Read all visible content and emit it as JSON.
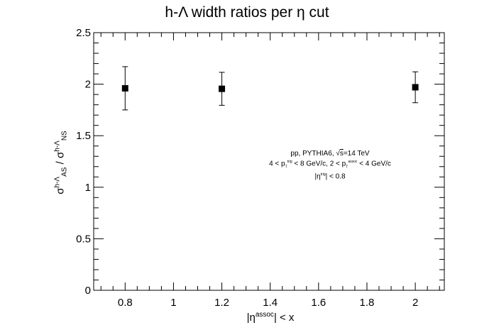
{
  "chart_data": {
    "type": "scatter",
    "title": "h-Λ width ratios per η cut",
    "xlabel": {
      "pre": "|η",
      "sup": "assoc",
      "post": "| < x"
    },
    "ylabel": {
      "s1": "σ",
      "s1sup": "h-Λ",
      "s1sub": "AS",
      "mid": " / ",
      "s2": "σ",
      "s2sup": "h-Λ",
      "s2sub": "NS"
    },
    "xlim": [
      0.67,
      2.12
    ],
    "ylim": [
      0,
      2.5
    ],
    "xticks": [
      0.8,
      1,
      1.2,
      1.4,
      1.6,
      1.8,
      2
    ],
    "xtick_labels": [
      "0.8",
      "1",
      "1.2",
      "1.4",
      "1.6",
      "1.8",
      "2"
    ],
    "yticks": [
      0,
      0.5,
      1,
      1.5,
      2,
      2.5
    ],
    "ytick_labels": [
      "0",
      "0.5",
      "1",
      "1.5",
      "2",
      "2.5"
    ],
    "grid": false,
    "series": [
      {
        "points": [
          {
            "x": 0.8,
            "y": 1.96,
            "err_low": 0.21,
            "err_high": 0.21
          },
          {
            "x": 1.2,
            "y": 1.955,
            "err_low": 0.16,
            "err_high": 0.16
          },
          {
            "x": 2.0,
            "y": 1.97,
            "err_low": 0.15,
            "err_high": 0.15
          }
        ],
        "color": "#000000"
      }
    ],
    "annotations": {
      "line1": {
        "pre": "pp, PYTHIA6, ",
        "sqrt": "√",
        "s": "s",
        "post": "=14 TeV"
      },
      "line2": {
        "a": "4 < p",
        "sub1": "T",
        "sup1": "trig",
        "b": " < 8 GeV/c, 2 < p",
        "sub2": "T",
        "sup2": "assoc",
        "c": " < 4 GeV/c"
      },
      "line3": {
        "a": "|η",
        "sup": "trig",
        "b": "| < 0.8"
      }
    }
  }
}
